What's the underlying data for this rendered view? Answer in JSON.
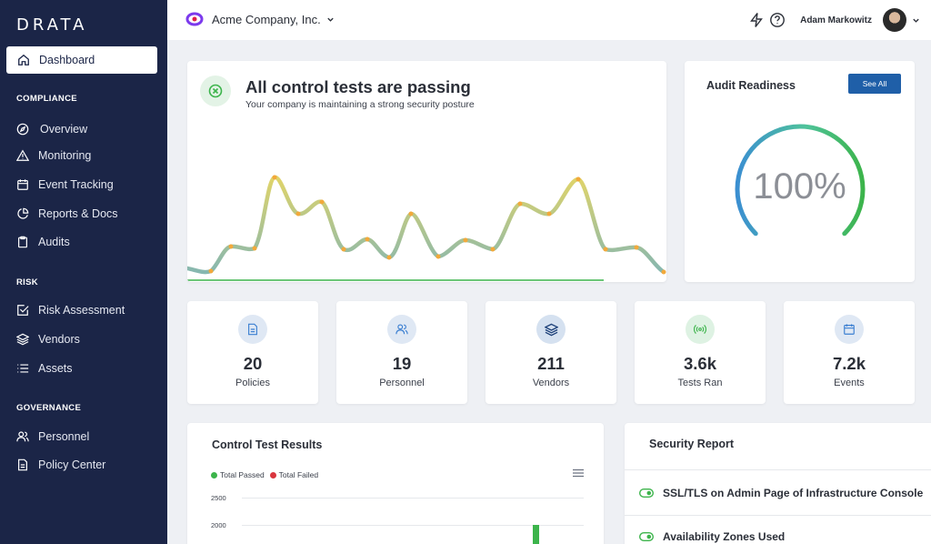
{
  "app": {
    "logo": "DRATA"
  },
  "sidebar": {
    "active": {
      "label": "Dashboard",
      "icon": "home-icon"
    },
    "sections": [
      {
        "title": "COMPLIANCE",
        "items": [
          {
            "label": "Overview",
            "icon": "compass-icon"
          },
          {
            "label": "Monitoring",
            "icon": "warning-icon"
          },
          {
            "label": "Event Tracking",
            "icon": "calendar-icon"
          },
          {
            "label": "Reports & Docs",
            "icon": "pie-chart-icon"
          },
          {
            "label": "Audits",
            "icon": "clipboard-icon"
          }
        ]
      },
      {
        "title": "RISK",
        "items": [
          {
            "label": "Risk Assessment",
            "icon": "checkbox-icon"
          },
          {
            "label": "Vendors",
            "icon": "layers-icon"
          },
          {
            "label": "Assets",
            "icon": "list-icon"
          }
        ]
      },
      {
        "title": "GOVERNANCE",
        "items": [
          {
            "label": "Personnel",
            "icon": "users-icon"
          },
          {
            "label": "Policy Center",
            "icon": "document-icon"
          }
        ]
      }
    ]
  },
  "topbar": {
    "company": "Acme Company, Inc.",
    "user": "Adam Markowitz"
  },
  "hero": {
    "title": "All control tests are passing",
    "subtitle": "Your company is maintaining a strong security posture"
  },
  "audit": {
    "title": "Audit Readiness",
    "see_all": "See All",
    "value": "100%",
    "percent": 100
  },
  "stats": [
    {
      "value": "20",
      "label": "Policies",
      "icon": "document-icon",
      "color": "#dfe8f4"
    },
    {
      "value": "19",
      "label": "Personnel",
      "icon": "users-icon",
      "color": "#dfe8f4"
    },
    {
      "value": "211",
      "label": "Vendors",
      "icon": "layers-icon",
      "color": "#d5e1f0"
    },
    {
      "value": "3.6k",
      "label": "Tests Ran",
      "icon": "signal-icon",
      "color": "#def2e3"
    },
    {
      "value": "7.2k",
      "label": "Events",
      "icon": "calendar-icon",
      "color": "#dfe8f4"
    }
  ],
  "control_results": {
    "title": "Control Test Results",
    "legend": [
      {
        "label": "Total Passed",
        "color": "#3cb44b"
      },
      {
        "label": "Total Failed",
        "color": "#d9363e"
      }
    ],
    "yticks": [
      "2500",
      "2000"
    ]
  },
  "security_report": {
    "title": "Security Report",
    "items": [
      {
        "label": "SSL/TLS on Admin Page of Infrastructure Console"
      },
      {
        "label": "Availability Zones Used"
      }
    ]
  },
  "colors": {
    "sidebar": "#1b2547",
    "accent": "#1f5fa8",
    "pass": "#3cb44b",
    "fail": "#d9363e"
  }
}
